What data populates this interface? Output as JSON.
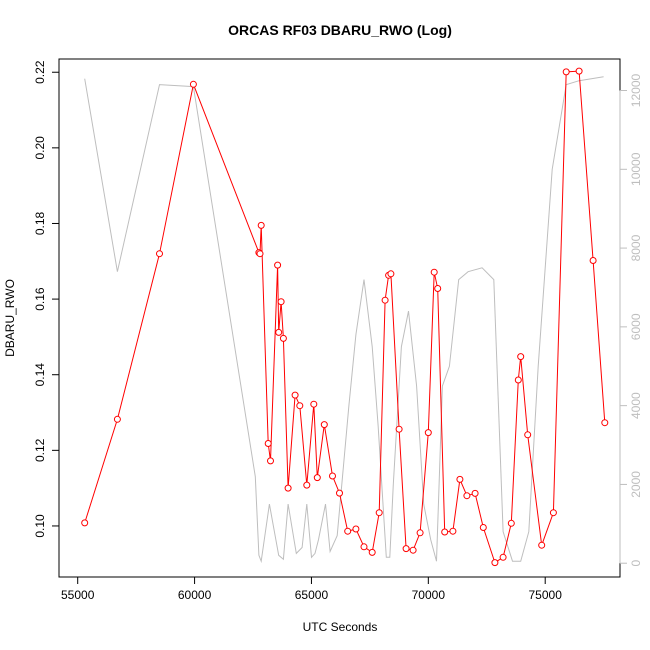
{
  "chart_data": {
    "type": "line",
    "title": "ORCAS RF03 DBARU_RWO (Log)",
    "xlabel": "UTC Seconds",
    "ylabel": "DBARU_RWO",
    "xlim": [
      54200,
      78200
    ],
    "ylim": [
      0.0865,
      0.2235
    ],
    "xticks": [
      55000,
      60000,
      65000,
      70000,
      75000
    ],
    "yticks": [
      0.1,
      0.12,
      0.14,
      0.16,
      0.18,
      0.2,
      0.22
    ],
    "y2lim": [
      -350,
      12800
    ],
    "y2ticks": [
      0,
      2000,
      4000,
      6000,
      8000,
      10000,
      12000
    ],
    "colors": {
      "primary": "#ff0000",
      "secondary": "#bebebe",
      "axis": "#000000"
    },
    "series": [
      {
        "axis": "left",
        "style": "line+points",
        "x": [
          55300,
          56700,
          58500,
          59950,
          62750,
          62800,
          62850,
          63150,
          63250,
          63550,
          63600,
          63700,
          63800,
          64000,
          64300,
          64500,
          64800,
          65100,
          65250,
          65550,
          65900,
          66200,
          66550,
          66900,
          67250,
          67600,
          67900,
          68150,
          68300,
          68400,
          68750,
          69050,
          69350,
          69650,
          70000,
          70250,
          70400,
          70700,
          71050,
          71350,
          71650,
          72000,
          72350,
          72850,
          73200,
          73550,
          73850,
          73950,
          74250,
          74850,
          75350,
          75900,
          76450,
          77050,
          77550
        ],
        "y": [
          0.1008,
          0.1282,
          0.172,
          0.2168,
          0.1723,
          0.172,
          0.1795,
          0.1218,
          0.1172,
          0.169,
          0.1512,
          0.1593,
          0.1496,
          0.11,
          0.1346,
          0.1318,
          0.1108,
          0.1322,
          0.1128,
          0.1268,
          0.1132,
          0.1087,
          0.0986,
          0.0992,
          0.0945,
          0.093,
          0.1035,
          0.1597,
          0.1663,
          0.1667,
          0.1256,
          0.094,
          0.0936,
          0.0982,
          0.1247,
          0.1671,
          0.1628,
          0.0984,
          0.0986,
          0.1123,
          0.108,
          0.1086,
          0.0996,
          0.0903,
          0.0917,
          0.1007,
          0.1386,
          0.1448,
          0.1241,
          0.0949,
          0.1035,
          0.2201,
          0.2203,
          0.1702,
          0.1273
        ]
      },
      {
        "axis": "right",
        "style": "line",
        "x": [
          55300,
          56700,
          58500,
          59950,
          62600,
          62750,
          62850,
          63200,
          63600,
          63800,
          64000,
          64350,
          64600,
          64800,
          65000,
          65150,
          65300,
          65600,
          65800,
          66100,
          66600,
          66900,
          67250,
          67600,
          67850,
          68200,
          68350,
          68500,
          68850,
          69150,
          69500,
          69800,
          70100,
          70350,
          70600,
          70900,
          71300,
          71700,
          72300,
          72800,
          73200,
          73600,
          73950,
          74300,
          74700,
          75300,
          75900,
          76450,
          77500
        ],
        "y": [
          12300,
          7400,
          12150,
          12100,
          2200,
          200,
          50,
          1500,
          200,
          100,
          1500,
          250,
          400,
          1500,
          150,
          250,
          600,
          1500,
          300,
          700,
          4000,
          5800,
          7200,
          5500,
          3500,
          150,
          150,
          2000,
          5500,
          6400,
          4500,
          1500,
          600,
          50,
          4500,
          5000,
          7200,
          7400,
          7500,
          7200,
          800,
          50,
          50,
          800,
          5000,
          10000,
          12150,
          12250,
          12350
        ]
      }
    ]
  }
}
